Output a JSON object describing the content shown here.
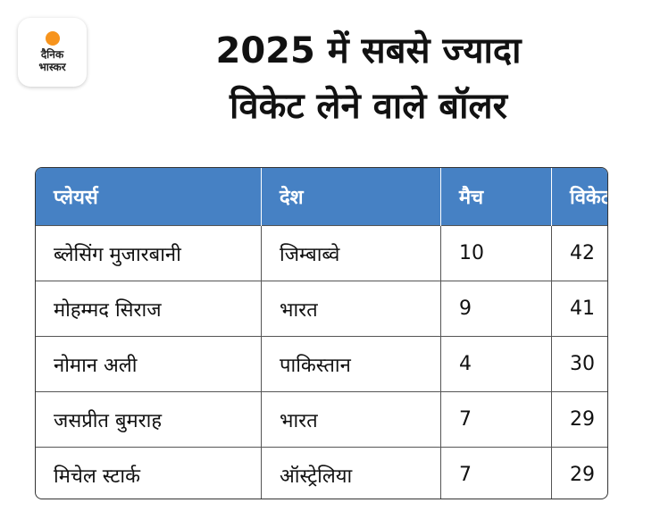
{
  "logo": {
    "line1": "दैनिक",
    "line2": "भास्कर",
    "accent": "#f7941d"
  },
  "title": {
    "line1": "2025 में सबसे ज्यादा",
    "line2": "विकेट लेने वाले बॉलर"
  },
  "header_color": "#4681c4",
  "table": {
    "headers": [
      "प्लेयर्स",
      "देश",
      "मैच",
      "विकेट"
    ],
    "rows": [
      [
        "ब्लेसिंग मुजारबानी",
        "जिम्बाब्वे",
        "10",
        "42"
      ],
      [
        "मोहम्मद सिराज",
        "भारत",
        "9",
        "41"
      ],
      [
        "नोमान अली",
        "पाकिस्तान",
        "4",
        "30"
      ],
      [
        "जसप्रीत बुमराह",
        "भारत",
        "7",
        "29"
      ],
      [
        "मिचेल स्टार्क",
        "ऑस्ट्रेलिया",
        "7",
        "29"
      ]
    ]
  }
}
